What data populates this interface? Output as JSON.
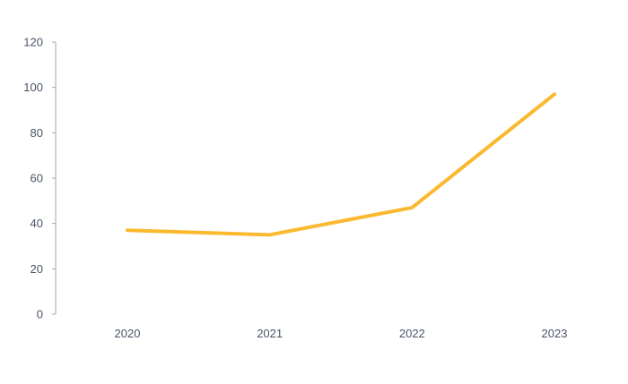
{
  "chart_data": {
    "type": "line",
    "categories": [
      "2020",
      "2021",
      "2022",
      "2023"
    ],
    "series": [
      {
        "values": [
          37,
          35,
          47,
          97
        ],
        "color": "#FBB92F"
      }
    ],
    "ylim": [
      0,
      120
    ],
    "yticks": [
      "0",
      "20",
      "40",
      "60",
      "80",
      "100",
      "120"
    ],
    "grid": false,
    "legend": "none"
  }
}
